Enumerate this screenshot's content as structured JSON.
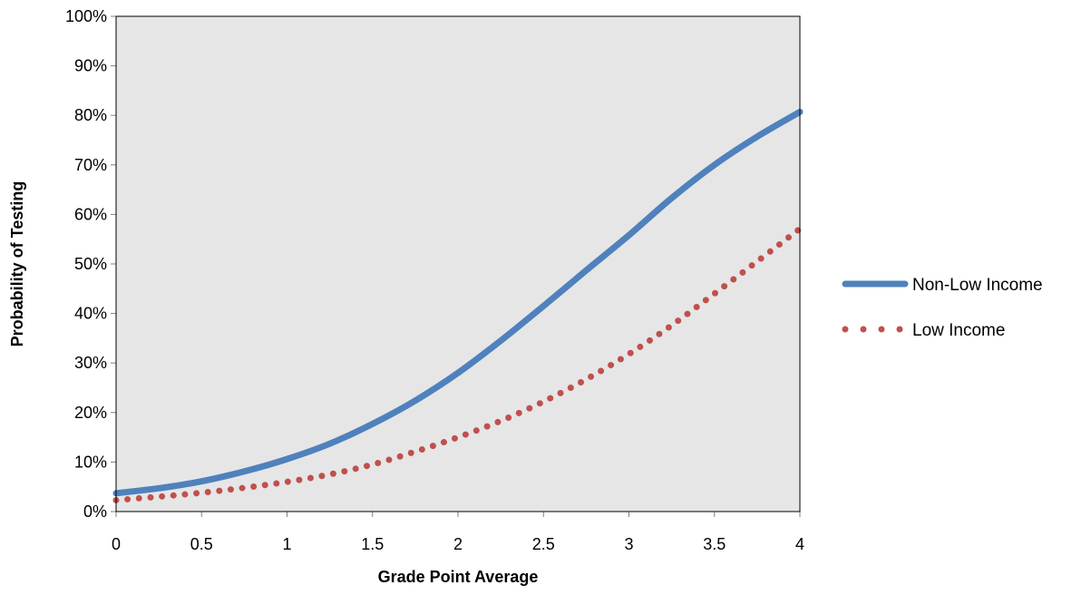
{
  "chart_data": {
    "type": "line",
    "title": "",
    "xlabel": "Grade Point Average",
    "ylabel": "Probability of Testing",
    "xlim": [
      0,
      4
    ],
    "ylim": [
      0,
      1
    ],
    "x_ticks": [
      "0",
      "0.5",
      "1",
      "1.5",
      "2",
      "2.5",
      "3",
      "3.5",
      "4"
    ],
    "y_ticks": [
      "0%",
      "10%",
      "20%",
      "30%",
      "40%",
      "50%",
      "60%",
      "70%",
      "80%",
      "90%",
      "100%"
    ],
    "grid": false,
    "plot_background": "#e6e6e6",
    "legend_position": "right",
    "x": [
      0,
      0.25,
      0.5,
      0.75,
      1,
      1.25,
      1.5,
      1.75,
      2,
      2.25,
      2.5,
      2.75,
      3,
      3.25,
      3.5,
      3.75,
      4
    ],
    "series": [
      {
        "name": "Non-Low Income",
        "color": "#4f81bd",
        "style": "solid",
        "values": [
          0.037,
          0.047,
          0.061,
          0.081,
          0.106,
          0.137,
          0.177,
          0.224,
          0.28,
          0.345,
          0.415,
          0.487,
          0.558,
          0.633,
          0.7,
          0.757,
          0.807
        ]
      },
      {
        "name": "Low Income",
        "color": "#c0504d",
        "style": "dotted",
        "values": [
          0.023,
          0.03,
          0.038,
          0.048,
          0.06,
          0.075,
          0.095,
          0.121,
          0.15,
          0.183,
          0.222,
          0.267,
          0.318,
          0.376,
          0.44,
          0.505,
          0.571
        ]
      }
    ]
  }
}
